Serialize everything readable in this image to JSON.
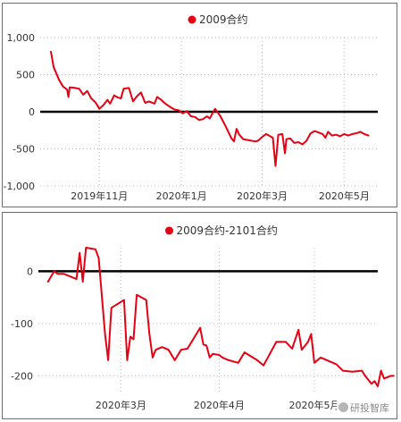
{
  "watermark": "研投智库",
  "chart_data": [
    {
      "type": "line",
      "legend_position": "top-center",
      "grid": true,
      "zero_line": true,
      "ylim": [
        -1000,
        1000
      ],
      "yticks": [
        1000,
        500,
        0,
        -500,
        -1000
      ],
      "ytick_labels": [
        "1,000",
        "500",
        "0",
        "-500",
        "-1,000"
      ],
      "xticks": [
        {
          "label": "2019年11月",
          "date": "2019-11-01"
        },
        {
          "label": "2020年1月",
          "date": "2020-01-01"
        },
        {
          "label": "2020年3月",
          "date": "2020-03-01"
        },
        {
          "label": "2020年5月",
          "date": "2020-05-01"
        }
      ],
      "xlim": [
        "2019-09-18",
        "2020-05-26"
      ],
      "series": [
        {
          "name": "2009合约",
          "color": "#e60012",
          "points": [
            [
              "2019-09-26",
              810
            ],
            [
              "2019-09-28",
              600
            ],
            [
              "2019-10-02",
              430
            ],
            [
              "2019-10-05",
              340
            ],
            [
              "2019-10-08",
              300
            ],
            [
              "2019-10-09",
              200
            ],
            [
              "2019-10-10",
              330
            ],
            [
              "2019-10-14",
              320
            ],
            [
              "2019-10-17",
              310
            ],
            [
              "2019-10-20",
              230
            ],
            [
              "2019-10-23",
              280
            ],
            [
              "2019-10-26",
              180
            ],
            [
              "2019-10-29",
              130
            ],
            [
              "2019-11-01",
              40
            ],
            [
              "2019-11-04",
              90
            ],
            [
              "2019-11-07",
              160
            ],
            [
              "2019-11-09",
              110
            ],
            [
              "2019-11-12",
              220
            ],
            [
              "2019-11-15",
              190
            ],
            [
              "2019-11-17",
              180
            ],
            [
              "2019-11-19",
              310
            ],
            [
              "2019-11-23",
              320
            ],
            [
              "2019-11-26",
              140
            ],
            [
              "2019-11-29",
              210
            ],
            [
              "2019-12-02",
              260
            ],
            [
              "2019-12-05",
              120
            ],
            [
              "2019-12-08",
              140
            ],
            [
              "2019-12-12",
              110
            ],
            [
              "2019-12-14",
              200
            ],
            [
              "2019-12-17",
              160
            ],
            [
              "2019-12-20",
              110
            ],
            [
              "2019-12-24",
              60
            ],
            [
              "2019-12-27",
              30
            ],
            [
              "2019-12-30",
              20
            ],
            [
              "2020-01-02",
              -20
            ],
            [
              "2020-01-05",
              10
            ],
            [
              "2020-01-08",
              -60
            ],
            [
              "2020-01-11",
              -70
            ],
            [
              "2020-01-14",
              -110
            ],
            [
              "2020-01-17",
              -100
            ],
            [
              "2020-01-20",
              -60
            ],
            [
              "2020-01-22",
              -90
            ],
            [
              "2020-01-26",
              40
            ],
            [
              "2020-01-30",
              -60
            ],
            [
              "2020-02-03",
              -200
            ],
            [
              "2020-02-07",
              -350
            ],
            [
              "2020-02-09",
              -400
            ],
            [
              "2020-02-11",
              -230
            ],
            [
              "2020-02-13",
              -310
            ],
            [
              "2020-02-16",
              -370
            ],
            [
              "2020-02-19",
              -380
            ],
            [
              "2020-02-22",
              -390
            ],
            [
              "2020-02-25",
              -400
            ],
            [
              "2020-02-27",
              -390
            ],
            [
              "2020-03-01",
              -340
            ],
            [
              "2020-03-04",
              -300
            ],
            [
              "2020-03-07",
              -330
            ],
            [
              "2020-03-09",
              -350
            ],
            [
              "2020-03-11",
              -730
            ],
            [
              "2020-03-13",
              -310
            ],
            [
              "2020-03-16",
              -300
            ],
            [
              "2020-03-18",
              -560
            ],
            [
              "2020-03-19",
              -370
            ],
            [
              "2020-03-22",
              -360
            ],
            [
              "2020-03-25",
              -420
            ],
            [
              "2020-03-28",
              -410
            ],
            [
              "2020-03-31",
              -440
            ],
            [
              "2020-04-03",
              -390
            ],
            [
              "2020-04-06",
              -290
            ],
            [
              "2020-04-09",
              -260
            ],
            [
              "2020-04-12",
              -280
            ],
            [
              "2020-04-15",
              -300
            ],
            [
              "2020-04-17",
              -350
            ],
            [
              "2020-04-19",
              -270
            ],
            [
              "2020-04-22",
              -320
            ],
            [
              "2020-04-25",
              -310
            ],
            [
              "2020-04-28",
              -330
            ],
            [
              "2020-05-01",
              -300
            ],
            [
              "2020-05-04",
              -320
            ],
            [
              "2020-05-07",
              -300
            ],
            [
              "2020-05-10",
              -290
            ],
            [
              "2020-05-13",
              -270
            ],
            [
              "2020-05-16",
              -300
            ],
            [
              "2020-05-19",
              -320
            ]
          ]
        }
      ]
    },
    {
      "type": "line",
      "legend_position": "top-center",
      "grid": true,
      "zero_line": true,
      "ylim": [
        -230,
        45
      ],
      "yticks": [
        0,
        -100,
        -200
      ],
      "ytick_labels": [
        "0",
        "-100",
        "-200"
      ],
      "xticks": [
        {
          "label": "2020年3月",
          "date": "2020-03-01"
        },
        {
          "label": "2020年4月",
          "date": "2020-04-01"
        },
        {
          "label": "2020年5月",
          "date": "2020-05-01"
        }
      ],
      "xlim": [
        "2020-02-04",
        "2020-05-21"
      ],
      "series": [
        {
          "name": "2009合约-2101合约",
          "color": "#e60012",
          "points": [
            [
              "2020-02-07",
              -20
            ],
            [
              "2020-02-08",
              -10
            ],
            [
              "2020-02-09",
              0
            ],
            [
              "2020-02-10",
              -5
            ],
            [
              "2020-02-12",
              -5
            ],
            [
              "2020-02-14",
              -10
            ],
            [
              "2020-02-16",
              -15
            ],
            [
              "2020-02-17",
              35
            ],
            [
              "2020-02-18",
              -20
            ],
            [
              "2020-02-19",
              45
            ],
            [
              "2020-02-22",
              42
            ],
            [
              "2020-02-23",
              25
            ],
            [
              "2020-02-25",
              -120
            ],
            [
              "2020-02-26",
              -170
            ],
            [
              "2020-02-27",
              -70
            ],
            [
              "2020-03-02",
              -55
            ],
            [
              "2020-03-03",
              -170
            ],
            [
              "2020-03-04",
              -125
            ],
            [
              "2020-03-05",
              -130
            ],
            [
              "2020-03-06",
              -45
            ],
            [
              "2020-03-09",
              -55
            ],
            [
              "2020-03-10",
              -120
            ],
            [
              "2020-03-11",
              -165
            ],
            [
              "2020-03-12",
              -150
            ],
            [
              "2020-03-14",
              -145
            ],
            [
              "2020-03-16",
              -150
            ],
            [
              "2020-03-18",
              -170
            ],
            [
              "2020-03-19",
              -160
            ],
            [
              "2020-03-20",
              -150
            ],
            [
              "2020-03-22",
              -148
            ],
            [
              "2020-03-26",
              -108
            ],
            [
              "2020-03-27",
              -140
            ],
            [
              "2020-03-28",
              -142
            ],
            [
              "2020-03-29",
              -165
            ],
            [
              "2020-03-30",
              -158
            ],
            [
              "2020-04-01",
              -160
            ],
            [
              "2020-04-02",
              -165
            ],
            [
              "2020-04-04",
              -170
            ],
            [
              "2020-04-07",
              -175
            ],
            [
              "2020-04-09",
              -155
            ],
            [
              "2020-04-13",
              -170
            ],
            [
              "2020-04-15",
              -180
            ],
            [
              "2020-04-19",
              -135
            ],
            [
              "2020-04-22",
              -135
            ],
            [
              "2020-04-24",
              -148
            ],
            [
              "2020-04-26",
              -112
            ],
            [
              "2020-04-27",
              -150
            ],
            [
              "2020-04-29",
              -135
            ],
            [
              "2020-04-30",
              -120
            ],
            [
              "2020-05-01",
              -175
            ],
            [
              "2020-05-03",
              -165
            ],
            [
              "2020-05-05",
              -170
            ],
            [
              "2020-05-08",
              -178
            ],
            [
              "2020-05-10",
              -190
            ],
            [
              "2020-05-13",
              -192
            ],
            [
              "2020-05-16",
              -190
            ],
            [
              "2020-05-17",
              -200
            ],
            [
              "2020-05-19",
              -215
            ],
            [
              "2020-05-20",
              -210
            ],
            [
              "2020-05-21",
              -220
            ],
            [
              "2020-05-22",
              -190
            ],
            [
              "2020-05-23",
              -205
            ],
            [
              "2020-05-25",
              -200
            ],
            [
              "2020-05-26",
              -200
            ]
          ]
        }
      ]
    }
  ]
}
